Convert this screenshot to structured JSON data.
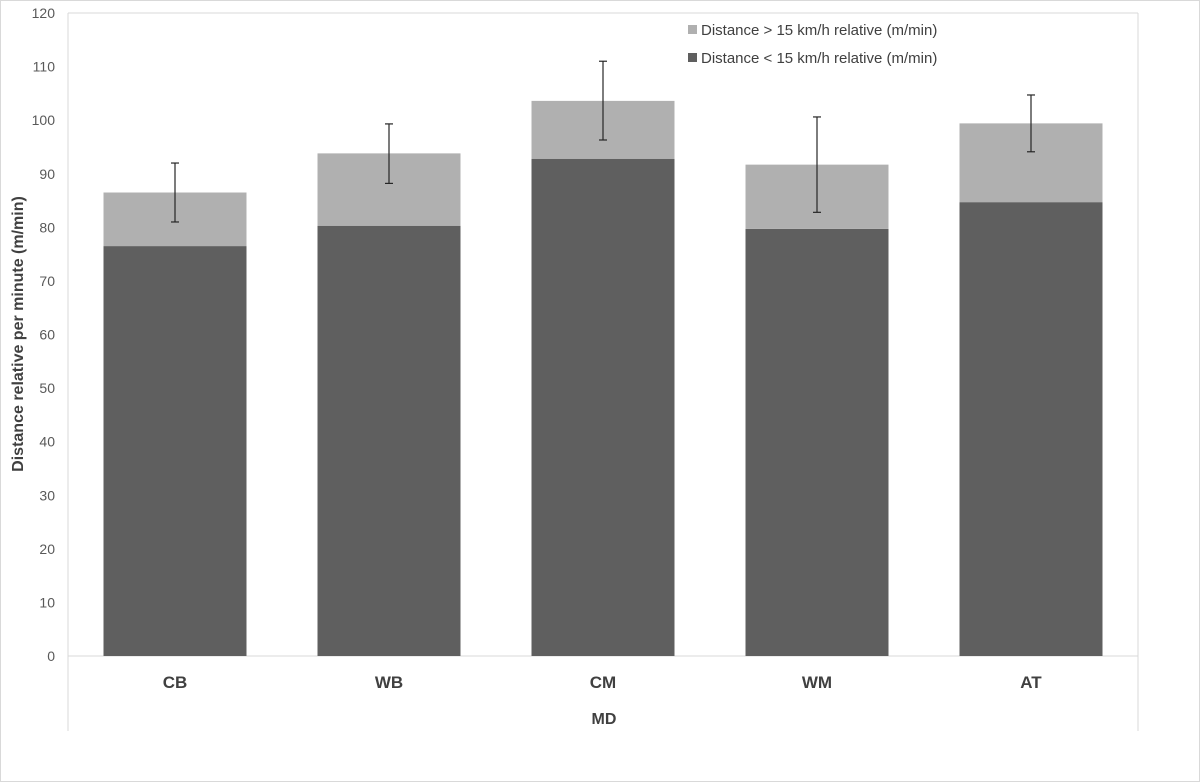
{
  "chart_data": {
    "type": "bar",
    "stacked": true,
    "categories": [
      "CB",
      "WB",
      "CM",
      "WM",
      "AT"
    ],
    "series": [
      {
        "name": "Distance < 15 km/h relative (m/min)",
        "color": "#5f5f5f",
        "values": [
          76.5,
          80.3,
          92.8,
          79.7,
          84.7
        ]
      },
      {
        "name": "Distance > 15 km/h relative (m/min)",
        "color": "#b0b0b0",
        "values": [
          10.0,
          13.5,
          10.8,
          12.0,
          14.7
        ]
      }
    ],
    "error_bars": {
      "upper": [
        92.0,
        99.3,
        111.0,
        100.6,
        104.7
      ],
      "lower": [
        81.0,
        88.2,
        96.3,
        82.8,
        94.1
      ]
    },
    "ylabel": "Distance relative per minute (m/min)",
    "xlabel": "MD",
    "ylim": [
      0,
      120
    ],
    "yticks": [
      0,
      10,
      20,
      30,
      40,
      50,
      60,
      70,
      80,
      90,
      100,
      110,
      120
    ],
    "grid": false,
    "legend_position": "top-right"
  }
}
